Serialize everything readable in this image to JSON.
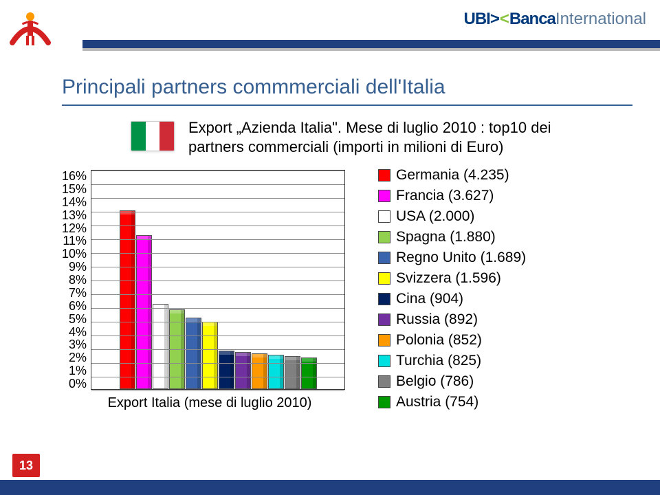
{
  "header": {
    "brand_prefix": "UBI",
    "brand_mid": "Banca",
    "brand_suffix": "International"
  },
  "title": "Principali partners commmerciali dell'Italia",
  "subtitle_line1": "Export „Azienda Italia\". Mese di luglio 2010 : top10 dei",
  "subtitle_line2": "partners commerciali (importi in milioni di Euro)",
  "chart": {
    "type": "bar",
    "x_title": "Export Italia (mese di luglio 2010)",
    "y_ticks": [
      "16%",
      "15%",
      "14%",
      "13%",
      "12%",
      "11%",
      "10%",
      "9%",
      "8%",
      "7%",
      "6%",
      "5%",
      "4%",
      "3%",
      "2%",
      "1%",
      "0%"
    ],
    "y_max_pct": 16,
    "grid_color": "#8a8a8a",
    "background_color": "#ffffff",
    "bars": [
      {
        "value_pct": 13.0,
        "color": "#ff0000"
      },
      {
        "value_pct": 11.2,
        "color": "#ff00ff"
      },
      {
        "value_pct": 6.2,
        "color": "#ffffff"
      },
      {
        "value_pct": 5.8,
        "color": "#92d050"
      },
      {
        "value_pct": 5.2,
        "color": "#3a64ad"
      },
      {
        "value_pct": 4.9,
        "color": "#ffff00"
      },
      {
        "value_pct": 2.8,
        "color": "#002060"
      },
      {
        "value_pct": 2.7,
        "color": "#7030a0"
      },
      {
        "value_pct": 2.6,
        "color": "#ff9900"
      },
      {
        "value_pct": 2.5,
        "color": "#00e0e0"
      },
      {
        "value_pct": 2.4,
        "color": "#808080"
      },
      {
        "value_pct": 2.3,
        "color": "#009900"
      }
    ]
  },
  "legend": [
    {
      "label": "Germania (4.235)",
      "color": "#ff0000"
    },
    {
      "label": "Francia (3.627)",
      "color": "#ff00ff"
    },
    {
      "label": "USA (2.000)",
      "color": "#ffffff"
    },
    {
      "label": "Spagna (1.880)",
      "color": "#92d050"
    },
    {
      "label": "Regno Unito (1.689)",
      "color": "#3a64ad"
    },
    {
      "label": "Svizzera (1.596)",
      "color": "#ffff00"
    },
    {
      "label": "Cina (904)",
      "color": "#002060"
    },
    {
      "label": "Russia (892)",
      "color": "#7030a0"
    },
    {
      "label": "Polonia (852)",
      "color": "#ff9900"
    },
    {
      "label": "Turchia (825)",
      "color": "#00e0e0"
    },
    {
      "label": "Belgio (786)",
      "color": "#808080"
    },
    {
      "label": "Austria (754)",
      "color": "#009900"
    }
  ],
  "page_number": "13"
}
